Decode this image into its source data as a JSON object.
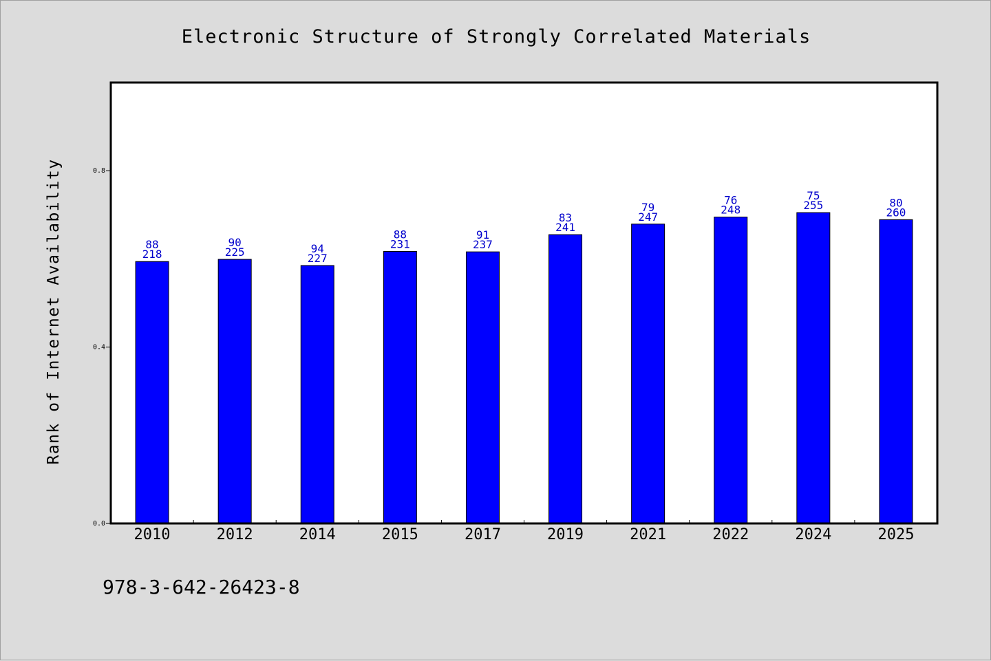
{
  "chart_data": {
    "type": "bar",
    "title": "Electronic Structure of Strongly Correlated Materials",
    "ylabel": "Rank of Internet Availability",
    "xlabel": "",
    "categories": [
      "2010",
      "2012",
      "2014",
      "2015",
      "2017",
      "2019",
      "2021",
      "2022",
      "2024",
      "2025"
    ],
    "values": [
      0.594,
      0.599,
      0.585,
      0.617,
      0.616,
      0.655,
      0.679,
      0.695,
      0.705,
      0.689
    ],
    "label_top": [
      "88",
      "90",
      "94",
      "88",
      "91",
      "83",
      "79",
      "76",
      "75",
      "80"
    ],
    "label_bottom": [
      "218",
      "225",
      "227",
      "231",
      "237",
      "241",
      "247",
      "248",
      "255",
      "260"
    ],
    "ylim": [
      0,
      1.0
    ],
    "yticks": [
      0.0,
      0.4,
      0.8
    ],
    "ytick_labels": [
      "0.0",
      "0.4",
      "0.8"
    ],
    "bar_color": "#0000ff",
    "label_color": "#0000cc",
    "background": "#dcdcdc",
    "plot_background": "#ffffff",
    "grid": false,
    "legend": "none"
  },
  "footer_text": "978-3-642-26423-8"
}
